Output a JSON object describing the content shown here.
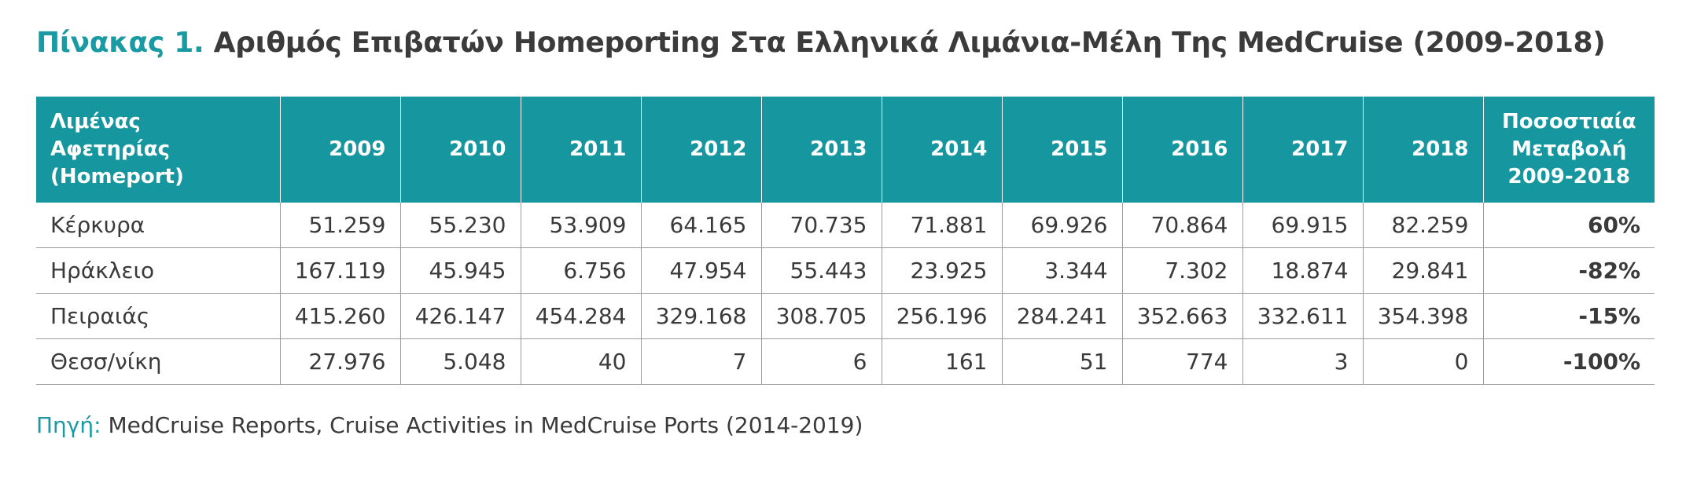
{
  "title": {
    "lead": "Πίνακας 1.",
    "rest": "Αριθμός Επιβατών Homeporting Στα Ελληνικά Λιμάνια-Μέλη Της MedCruise (2009-2018)"
  },
  "table": {
    "headers": {
      "port_line1": "Λιμένας Αφετηρίας",
      "port_line2": "(Homeport)",
      "years": [
        "2009",
        "2010",
        "2011",
        "2012",
        "2013",
        "2014",
        "2015",
        "2016",
        "2017",
        "2018"
      ],
      "change_line1": "Ποσοστιαία",
      "change_line2": "Μεταβολή",
      "change_line3": "2009-2018"
    },
    "rows": [
      {
        "port": "Κέρκυρα",
        "values": [
          "51.259",
          "55.230",
          "53.909",
          "64.165",
          "70.735",
          "71.881",
          "69.926",
          "70.864",
          "69.915",
          "82.259"
        ],
        "change": "60%"
      },
      {
        "port": "Ηράκλειο",
        "values": [
          "167.119",
          "45.945",
          "6.756",
          "47.954",
          "55.443",
          "23.925",
          "3.344",
          "7.302",
          "18.874",
          "29.841"
        ],
        "change": "-82%"
      },
      {
        "port": "Πειραιάς",
        "values": [
          "415.260",
          "426.147",
          "454.284",
          "329.168",
          "308.705",
          "256.196",
          "284.241",
          "352.663",
          "332.611",
          "354.398"
        ],
        "change": "-15%"
      },
      {
        "port": "Θεσσ/νίκη",
        "values": [
          "27.976",
          "5.048",
          "40",
          "7",
          "6",
          "161",
          "51",
          "774",
          "3",
          "0"
        ],
        "change": "-100%"
      }
    ]
  },
  "source": {
    "label": "Πηγή:",
    "text": " MedCruise Reports, Cruise Activities in MedCruise Ports (2014-2019)"
  },
  "colors": {
    "accent": "#1a9aa3",
    "header_bg": "#16969e",
    "text": "#3a3a3a",
    "rule": "#9a9a9a"
  }
}
